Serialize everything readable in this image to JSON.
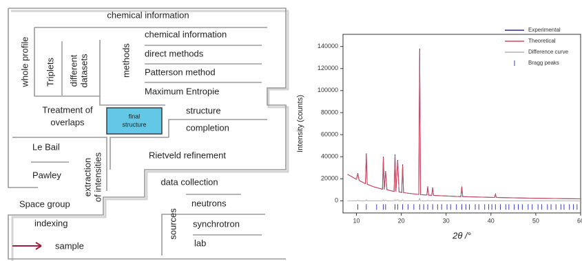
{
  "diagram": {
    "top": "chemical information",
    "whole_profile": "whole profile",
    "triplets": "Triplets",
    "different_datasets": [
      "different",
      "datasets"
    ],
    "methods": "methods",
    "method_list": [
      "chemical information",
      "direct methods",
      "Patterson method",
      "Maximum Entropie"
    ],
    "treatment_of_overlaps": [
      "Treatment of",
      "overlaps"
    ],
    "final_structure": [
      "final",
      "structure"
    ],
    "structure": "structure",
    "completion": "completion",
    "le_bail": "Le Bail",
    "pawley": "Pawley",
    "extraction_of_intensities": [
      "extraction",
      "of intensities"
    ],
    "rietveld_refinement": "Rietveld refinement",
    "data_collection": "data collection",
    "space_group": "Space group",
    "indexing": "indexing",
    "sources": "sources",
    "source_list": [
      "neutrons",
      "synchrotron",
      "lab"
    ],
    "sample": "sample"
  },
  "chart_data": {
    "type": "line",
    "x_label": "2θ /°",
    "y_label": "Intensity (counts)",
    "xlim": [
      7,
      60
    ],
    "xticks": [
      10,
      20,
      30,
      40,
      50,
      60
    ],
    "ylim": [
      -11000,
      151000
    ],
    "yticks": [
      0,
      20000,
      40000,
      60000,
      80000,
      100000,
      120000,
      140000
    ],
    "legend": "top-right",
    "x": [
      8,
      10,
      10.3,
      10.6,
      12,
      12.2,
      12.4,
      14,
      15.8,
      16.0,
      16.2,
      16.5,
      16.8,
      18.4,
      18.6,
      18.8,
      19.2,
      19.5,
      20.1,
      20.3,
      20.5,
      23.9,
      24.1,
      24.3,
      25.7,
      25.9,
      26.1,
      26.8,
      27,
      27.2,
      33.3,
      33.5,
      33.7,
      40.8,
      41,
      41.2,
      50,
      60
    ],
    "series": [
      {
        "name": "Experimental",
        "type": "line",
        "color": "#2b2b8c",
        "values": [
          24000,
          19500,
          25000,
          18500,
          15500,
          43000,
          15000,
          12500,
          10500,
          40000,
          10300,
          27000,
          10000,
          8500,
          42000,
          8400,
          37000,
          8000,
          7500,
          33000,
          7400,
          5700,
          138000,
          5600,
          5200,
          13000,
          5100,
          5000,
          12000,
          4900,
          3800,
          13000,
          3800,
          3000,
          6000,
          3000,
          2300,
          1800
        ]
      },
      {
        "name": "Theoretical",
        "type": "line",
        "color": "#d0485a",
        "values": [
          24000,
          19500,
          24500,
          18500,
          15500,
          42000,
          15000,
          12500,
          10500,
          39000,
          10300,
          26500,
          10000,
          8500,
          41000,
          8400,
          36000,
          8000,
          7500,
          32000,
          7400,
          5700,
          136000,
          5600,
          5200,
          12500,
          5100,
          5000,
          11500,
          4900,
          3800,
          12500,
          3800,
          3000,
          5800,
          3000,
          2300,
          1800
        ]
      },
      {
        "name": "Difference curve",
        "type": "line",
        "color": "#b0b0b0",
        "values": [
          0,
          0,
          500,
          0,
          0,
          1000,
          0,
          0,
          0,
          1000,
          0,
          500,
          0,
          0,
          1000,
          0,
          1000,
          0,
          0,
          1000,
          0,
          0,
          2000,
          0,
          0,
          500,
          0,
          0,
          500,
          0,
          0,
          500,
          0,
          0,
          200,
          0,
          0,
          0
        ]
      },
      {
        "name": "Bragg peaks",
        "type": "scatter",
        "color": "#3a3acc",
        "x": [
          10.3,
          12.2,
          14.5,
          16.0,
          16.5,
          18.6,
          19.2,
          20.3,
          21.5,
          22.8,
          24.1,
          25.0,
          25.9,
          27.0,
          28.1,
          29.0,
          30.2,
          31.0,
          32.3,
          33.5,
          34.4,
          35.2,
          36.5,
          37.3,
          38.6,
          39.5,
          40.2,
          41.0,
          42.1,
          43.3,
          44.0,
          45.2,
          46.1,
          47.0,
          48.3,
          49.2,
          50.5,
          51.3,
          52.6,
          53.4,
          54.5,
          55.6,
          56.3,
          57.5,
          58.4,
          59.2
        ],
        "values": [
          -5600,
          -5600,
          -5600,
          -5600,
          -5600,
          -5600,
          -5600,
          -5600,
          -5600,
          -5600,
          -5600,
          -5600,
          -5600,
          -5600,
          -5600,
          -5600,
          -5600,
          -5600,
          -5600,
          -5600,
          -5600,
          -5600,
          -5600,
          -5600,
          -5600,
          -5600,
          -5600,
          -5600,
          -5600,
          -5600,
          -5600,
          -5600,
          -5600,
          -5600,
          -5600,
          -5600,
          -5600,
          -5600,
          -5600,
          -5600,
          -5600,
          -5600,
          -5600,
          -5600,
          -5600,
          -5600
        ]
      }
    ]
  }
}
